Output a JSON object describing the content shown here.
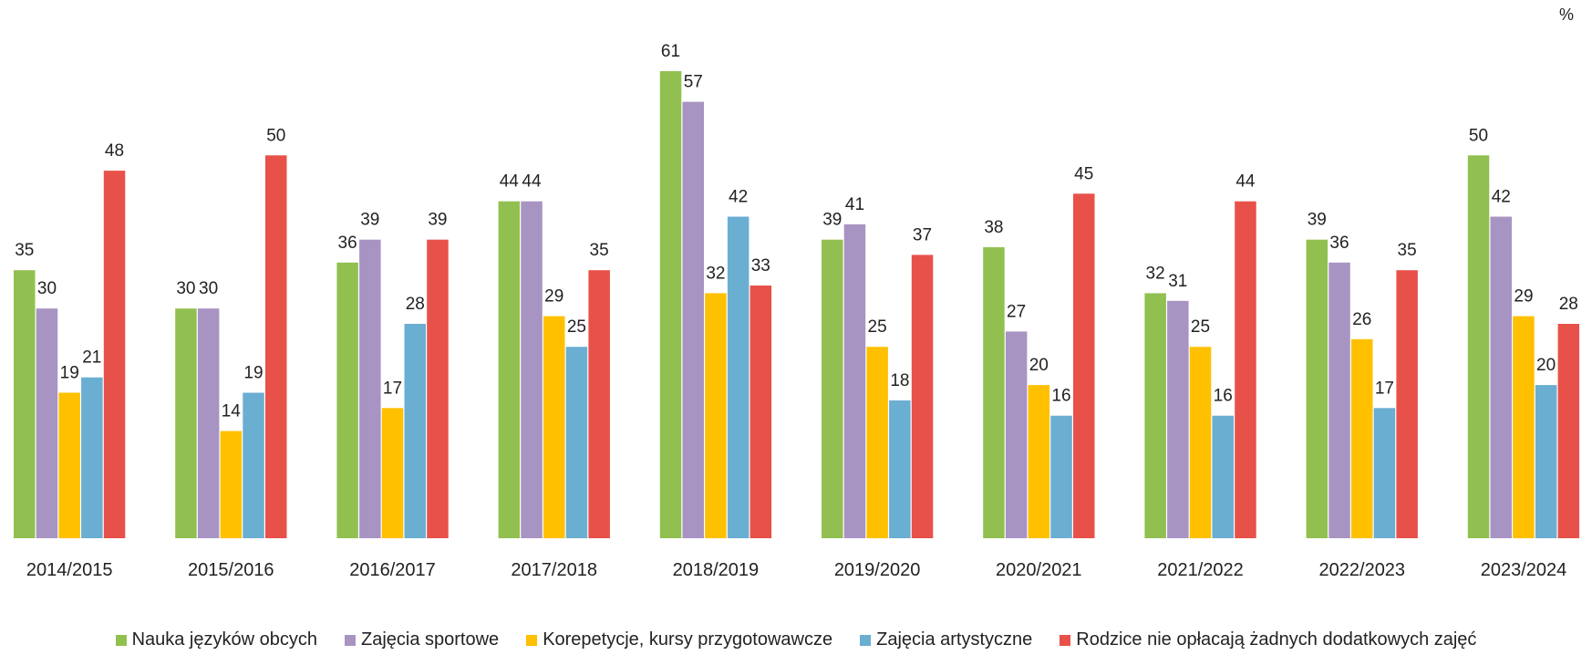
{
  "chart_data": {
    "type": "bar",
    "unit_label": "%",
    "categories": [
      "2014/2015",
      "2015/2016",
      "2016/2017",
      "2017/2018",
      "2018/2019",
      "2019/2020",
      "2020/2021",
      "2021/2022",
      "2022/2023",
      "2023/2024"
    ],
    "series": [
      {
        "name": "Nauka języków obcych",
        "color": "#92c050",
        "values": [
          35,
          30,
          36,
          44,
          61,
          39,
          38,
          32,
          39,
          50
        ]
      },
      {
        "name": "Zajęcia sportowe",
        "color": "#a894c2",
        "values": [
          30,
          30,
          39,
          44,
          57,
          41,
          27,
          31,
          36,
          42
        ]
      },
      {
        "name": "Korepetycje, kursy przygotowawcze",
        "color": "#ffc000",
        "values": [
          19,
          14,
          17,
          29,
          32,
          25,
          20,
          25,
          26,
          29
        ]
      },
      {
        "name": "Zajęcia artystyczne",
        "color": "#6aaed2",
        "values": [
          21,
          19,
          28,
          25,
          42,
          18,
          16,
          16,
          17,
          20
        ]
      },
      {
        "name": "Rodzice nie opłacają żadnych dodatkowych zajęć",
        "color": "#e8514a",
        "values": [
          48,
          50,
          39,
          35,
          33,
          37,
          45,
          44,
          35,
          28
        ]
      }
    ],
    "ylim": [
      0,
      61
    ],
    "legend_position": "bottom",
    "grid": false
  }
}
